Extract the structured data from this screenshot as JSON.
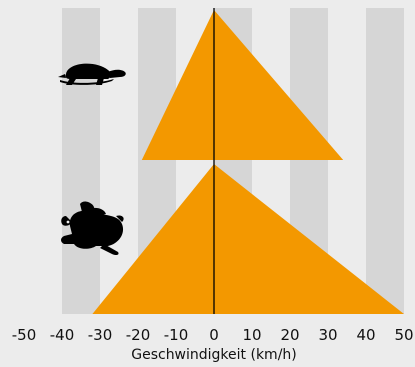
{
  "chart_data": {
    "type": "area",
    "xlabel": "Geschwindigkeit (km/h)",
    "xlim": [
      -50,
      50
    ],
    "x_ticks": [
      -50,
      -40,
      -30,
      -20,
      -10,
      0,
      10,
      20,
      30,
      40,
      50
    ],
    "tick_labels": [
      "-50",
      "-40",
      "-30",
      "-20",
      "-10",
      "0",
      "10",
      "20",
      "30",
      "40",
      "50"
    ],
    "series": [
      {
        "icon": "turtle-icon",
        "x": [
          -19,
          0,
          34
        ],
        "y": [
          0,
          1,
          0
        ]
      },
      {
        "icon": "rabbit-icon",
        "x": [
          -32,
          0,
          50
        ],
        "y": [
          0,
          1,
          0
        ]
      }
    ],
    "grid": true,
    "colors": {
      "fill": "#f39800",
      "background": "#ececec",
      "band": "#d6d6d6",
      "axis": "#000000"
    }
  }
}
